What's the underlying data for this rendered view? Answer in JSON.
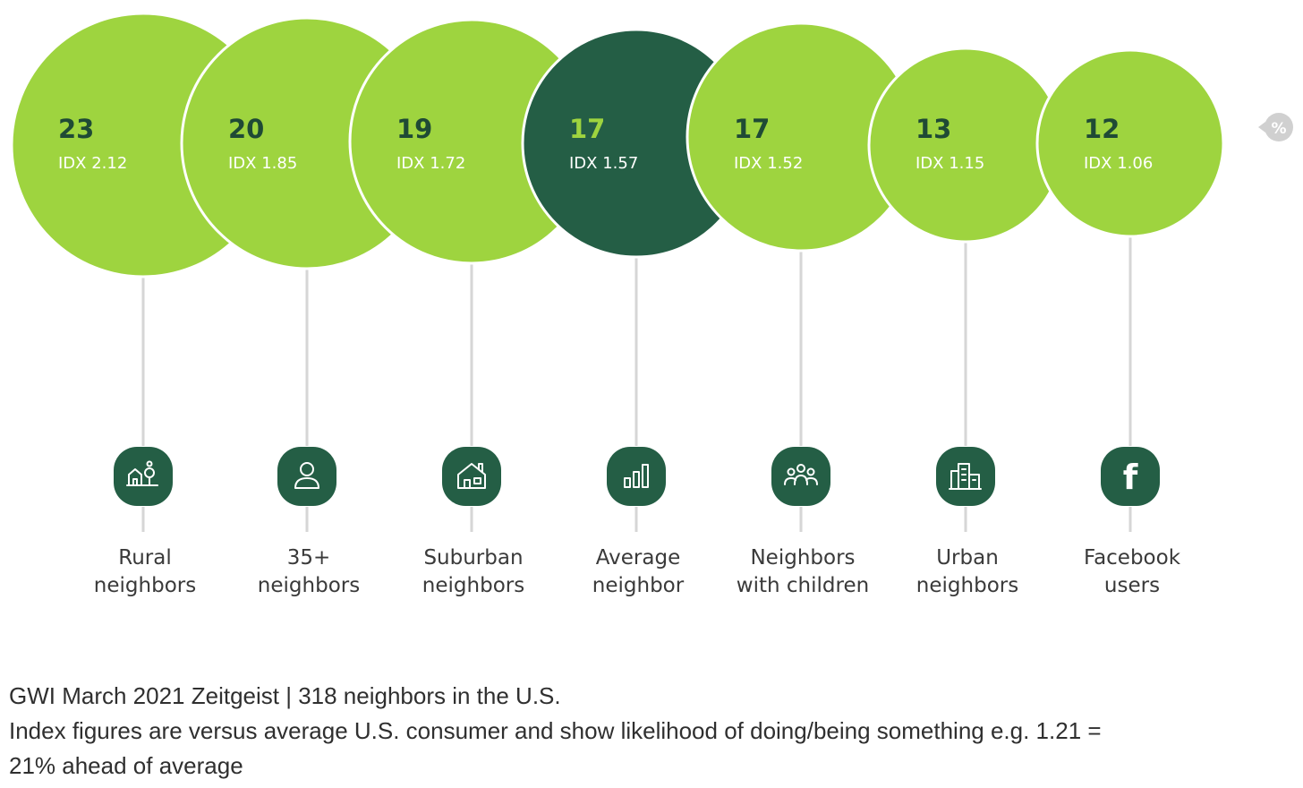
{
  "chart_data": {
    "type": "bubble",
    "unit_icon": "%",
    "series": [
      {
        "category": "Rural neighbors",
        "value": 23,
        "index_label": "IDX 2.12",
        "icon": "rural-house-tree-icon",
        "highlight": false
      },
      {
        "category": "35+ neighbors",
        "value": 20,
        "index_label": "IDX 1.85",
        "icon": "person-icon",
        "highlight": false
      },
      {
        "category": "Suburban neighbors",
        "value": 19,
        "index_label": "IDX 1.72",
        "icon": "suburban-house-icon",
        "highlight": false
      },
      {
        "category": "Average neighbor",
        "value": 17,
        "index_label": "IDX 1.57",
        "icon": "bar-chart-icon",
        "highlight": true
      },
      {
        "category": "Neighbors with children",
        "value": 17,
        "index_label": "IDX 1.52",
        "icon": "family-group-icon",
        "highlight": false
      },
      {
        "category": "Urban neighbors",
        "value": 13,
        "index_label": "IDX 1.15",
        "icon": "city-buildings-icon",
        "highlight": false
      },
      {
        "category": "Facebook users",
        "value": 12,
        "index_label": "IDX 1.06",
        "icon": "facebook-icon",
        "highlight": false
      }
    ],
    "labels": [
      [
        "Rural",
        "neighbors"
      ],
      [
        "35+",
        "neighbors"
      ],
      [
        "Suburban",
        "neighbors"
      ],
      [
        "Average",
        "neighbor"
      ],
      [
        "Neighbors",
        "with children"
      ],
      [
        "Urban",
        "neighbors"
      ],
      [
        "Facebook",
        "users"
      ]
    ]
  },
  "colors": {
    "bubble": "#9ed43f",
    "highlight_bubble": "#245e45",
    "text_dark": "#1f4a35",
    "text_light": "#ffffff",
    "highlight_value": "#9ed43f",
    "icon_bg": "#245e45",
    "connector": "#d6d6d6"
  },
  "source": {
    "line1": "GWI March 2021 Zeitgeist | 318 neighbors in the U.S.",
    "line2": "Index figures are versus average U.S. consumer and show likelihood of doing/being something e.g. 1.21 =",
    "line3": "21% ahead of average"
  }
}
